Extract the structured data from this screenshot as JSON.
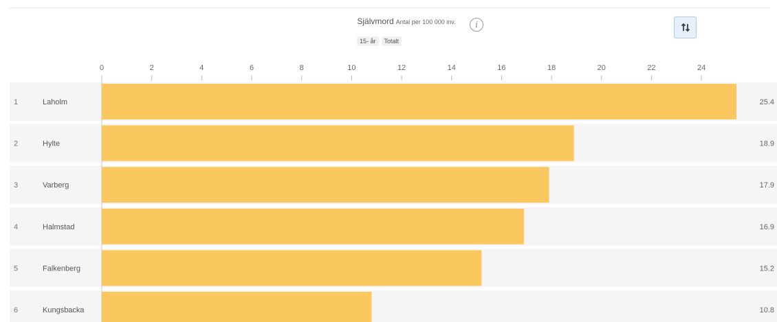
{
  "chart_data": {
    "type": "bar",
    "orientation": "horizontal",
    "title": "Självmord",
    "unit": "Antal per 100 000 inv.",
    "filters": [
      "15- år",
      "Totalt"
    ],
    "categories": [
      "Laholm",
      "Hylte",
      "Varberg",
      "Halmstad",
      "Falkenberg",
      "Kungsbacka"
    ],
    "ranks": [
      "1",
      "2",
      "3",
      "4",
      "5",
      "6"
    ],
    "values": [
      25.4,
      18.9,
      17.9,
      16.9,
      15.2,
      10.8
    ],
    "value_labels": [
      "25.4",
      "18.9",
      "17.9",
      "16.9",
      "15.2",
      "10.8"
    ],
    "x_ticks": [
      "0",
      "2",
      "4",
      "6",
      "8",
      "10",
      "12",
      "14",
      "16",
      "18",
      "20",
      "22",
      "24"
    ],
    "xlim": [
      0,
      25.4
    ],
    "grid": true,
    "colors": {
      "bar": "#fbc85f",
      "row_background": "#f5f5f5"
    }
  },
  "controls": {
    "info_icon": "info-icon",
    "info_glyph": "i",
    "sort_icon": "sort-arrows-icon"
  }
}
